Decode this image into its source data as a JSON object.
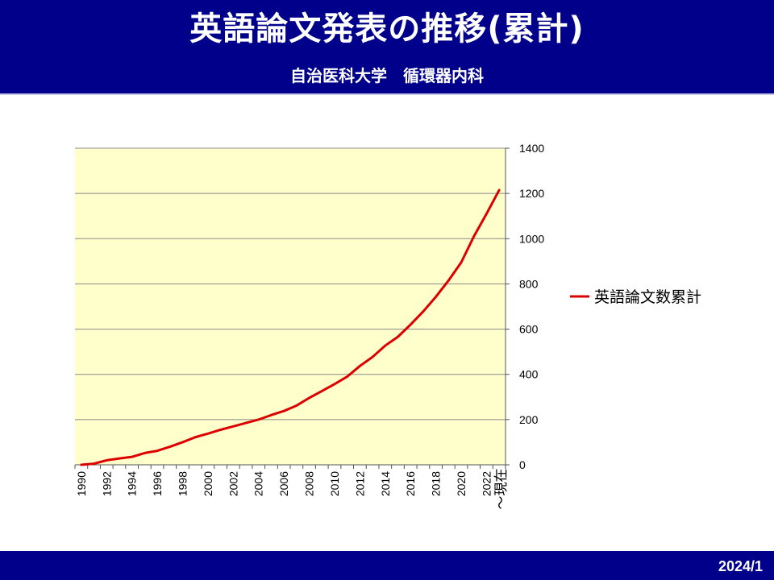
{
  "header": {
    "title": "英語論文発表の推移(累計)",
    "subtitle": "自治医科大学　循環器内科"
  },
  "footer": {
    "date": "2024/1"
  },
  "colors": {
    "header_bg": "#00008b",
    "plot_bg": "#ffffcc",
    "series_line": "#dd0000",
    "grid": "#888888"
  },
  "chart_data": {
    "type": "line",
    "x": [
      "1990",
      "1991",
      "1992",
      "1993",
      "1994",
      "1995",
      "1996",
      "1997",
      "1998",
      "1999",
      "2000",
      "2001",
      "2002",
      "2003",
      "2004",
      "2005",
      "2006",
      "2007",
      "2008",
      "2009",
      "2010",
      "2011",
      "2012",
      "2013",
      "2014",
      "2015",
      "2016",
      "2017",
      "2018",
      "2019",
      "2020",
      "2021",
      "2022",
      "2023"
    ],
    "x_tick_labels": [
      "1990",
      "1992",
      "1994",
      "1996",
      "1998",
      "2000",
      "2002",
      "2004",
      "2006",
      "2008",
      "2010",
      "2012",
      "2014",
      "2016",
      "2018",
      "2020",
      "2022"
    ],
    "x_last_label": "～現在",
    "series": [
      {
        "name": "英語論文数累計",
        "values": [
          0,
          5,
          20,
          28,
          35,
          52,
          62,
          80,
          100,
          122,
          138,
          155,
          170,
          185,
          200,
          220,
          238,
          262,
          296,
          326,
          357,
          390,
          437,
          477,
          527,
          566,
          620,
          678,
          743,
          815,
          895,
          1010,
          1110,
          1215
        ]
      }
    ],
    "ylim": [
      0,
      1400
    ],
    "y_ticks": [
      0,
      200,
      400,
      600,
      800,
      1000,
      1200,
      1400
    ],
    "y_axis_side": "right",
    "grid": true,
    "legend_position": "right",
    "title": "",
    "xlabel": "",
    "ylabel": ""
  }
}
